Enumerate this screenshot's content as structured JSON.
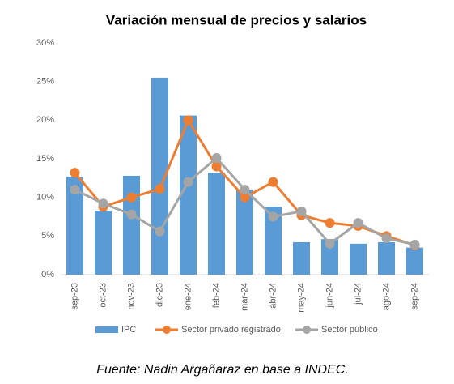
{
  "chart_data": {
    "type": "bar",
    "title": "Variación mensual de precios y salarios",
    "categories": [
      "sep-23",
      "oct-23",
      "nov-23",
      "dic-23",
      "ene-24",
      "feb-24",
      "mar-24",
      "abr-24",
      "may-24",
      "jun-24",
      "jul-24",
      "ago-24",
      "sep-24"
    ],
    "series": [
      {
        "name": "IPC",
        "type": "bar",
        "color": "#5b9bd5",
        "values": [
          12.7,
          8.3,
          12.8,
          25.5,
          20.6,
          13.2,
          11.0,
          8.8,
          4.2,
          4.6,
          4.0,
          4.2,
          3.5
        ]
      },
      {
        "name": "Sector privado registrado",
        "type": "line",
        "color": "#ed7d31",
        "values": [
          13.2,
          8.8,
          10.0,
          11.1,
          20.0,
          14.0,
          10.0,
          12.0,
          7.7,
          6.7,
          6.3,
          5.0,
          3.8
        ]
      },
      {
        "name": "Sector público",
        "type": "line",
        "color": "#a5a5a5",
        "values": [
          11.0,
          9.2,
          7.8,
          5.6,
          12.0,
          15.1,
          11.0,
          7.5,
          8.2,
          4.0,
          6.7,
          4.7,
          3.9
        ]
      }
    ],
    "ylim": [
      0,
      30
    ],
    "yticks": [
      {
        "value": 0,
        "label": "0%"
      },
      {
        "value": 5,
        "label": "5%"
      },
      {
        "value": 10,
        "label": "10%"
      },
      {
        "value": 15,
        "label": "15%"
      },
      {
        "value": 20,
        "label": "20%"
      },
      {
        "value": 25,
        "label": "25%"
      },
      {
        "value": 30,
        "label": "30%"
      }
    ],
    "grid": false,
    "legend": "bottom",
    "note": "Fuente: Nadin Argañaraz en base a INDEC."
  }
}
